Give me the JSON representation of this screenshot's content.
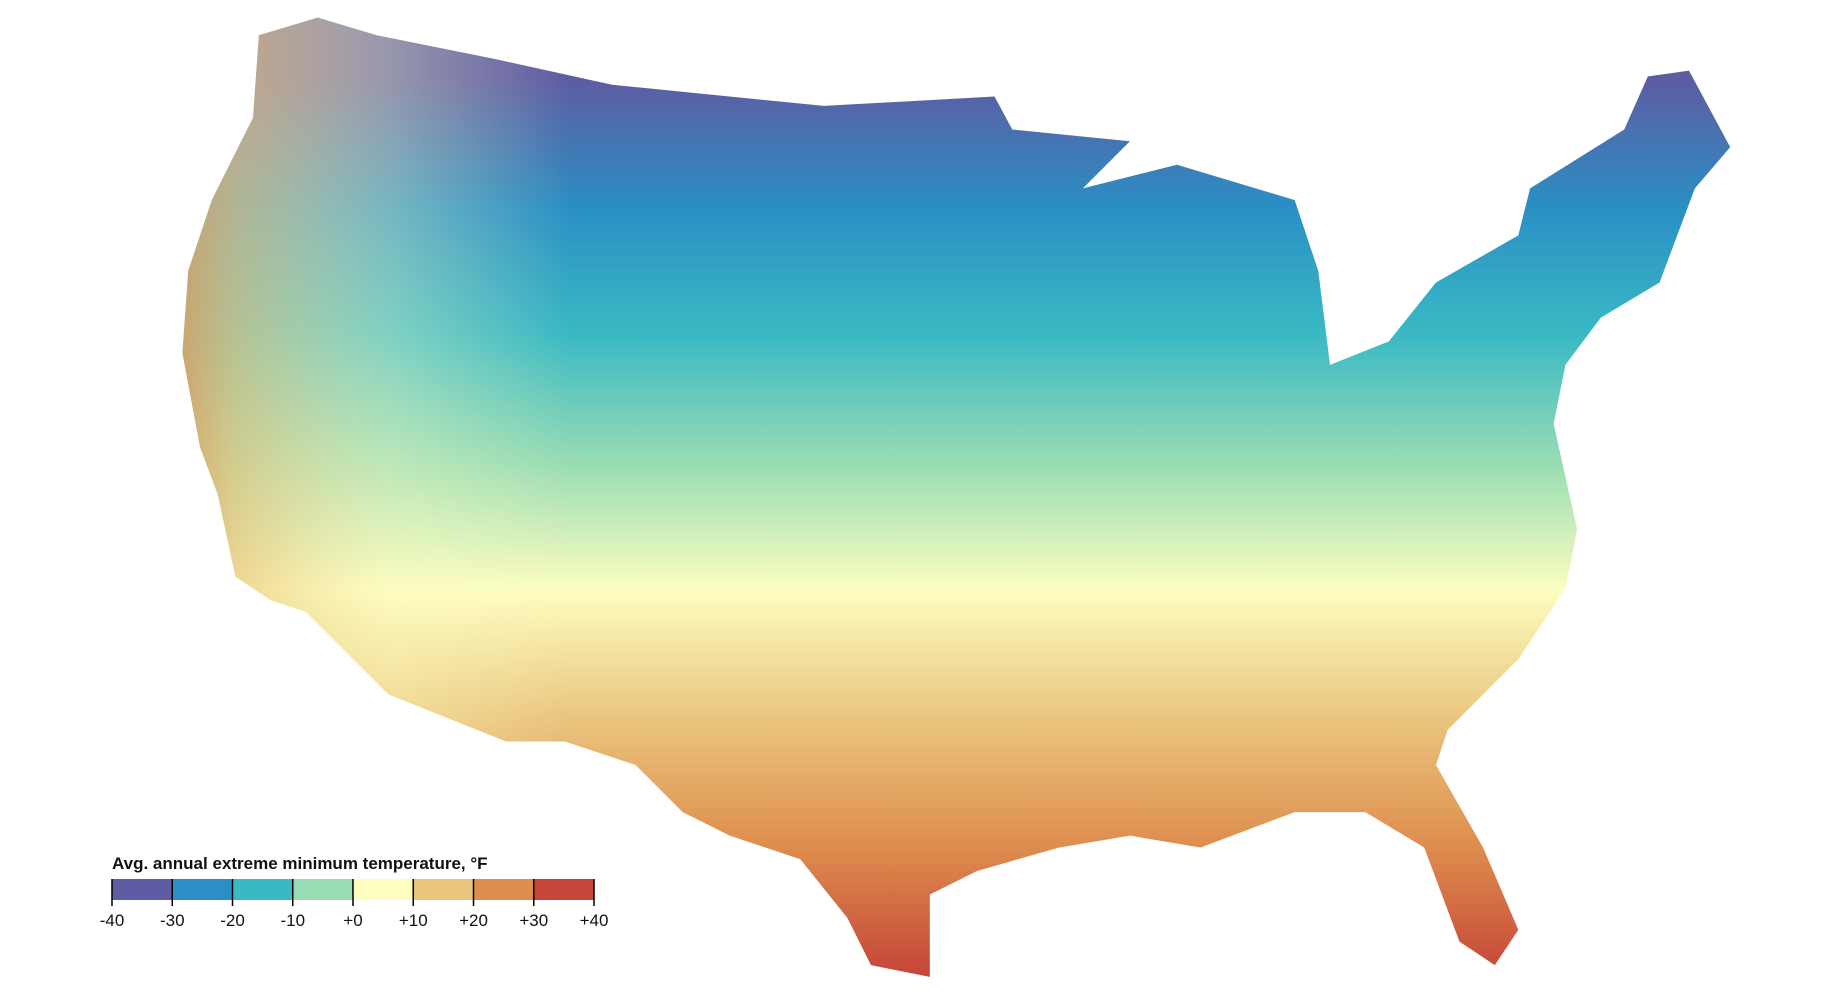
{
  "legend": {
    "title": "Avg. annual extreme minimum temperature, °F",
    "ticks": [
      -40,
      -30,
      -20,
      -10,
      {
        "value": 0,
        "label": "+0"
      },
      {
        "value": 10,
        "label": "+10"
      },
      {
        "value": 20,
        "label": "+20"
      },
      {
        "value": 30,
        "label": "+30"
      },
      {
        "value": 40,
        "label": "+40"
      }
    ],
    "colors": [
      "#5e5ca2",
      "#2a8fc4",
      "#3ab9c4",
      "#98dcb4",
      "#fdfdc0",
      "#eac57e",
      "#de8d4e",
      "#c6463a"
    ]
  }
}
